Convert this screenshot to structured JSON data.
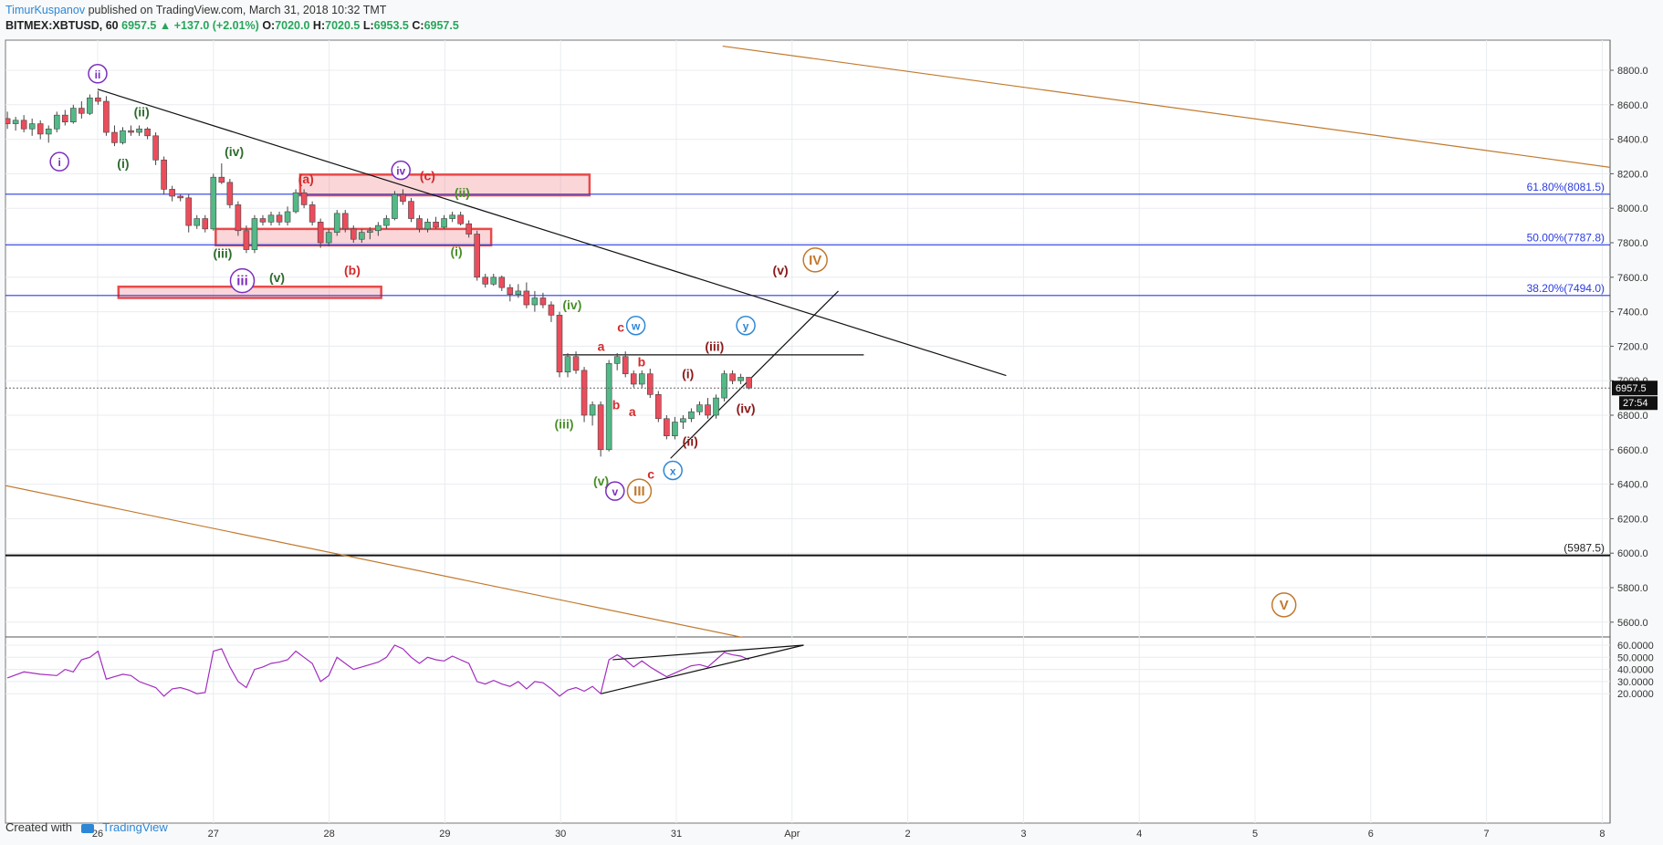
{
  "header": {
    "author": "TimurKuspanov",
    "published": "published on TradingView.com, March 31, 2018 10:32 TMT",
    "symbol": "BITMEX:XBTUSD, 60",
    "last": "6957.5",
    "change_arrow": "▲",
    "change": "+137.0 (+2.01%)",
    "o_label": "O:",
    "o": "7020.0",
    "h_label": "H:",
    "h": "7020.5",
    "l_label": "L:",
    "l": "6953.5",
    "c_label": "C:",
    "c": "6957.5"
  },
  "footer": {
    "created_with": "Created with",
    "brand": "TradingView"
  },
  "colors": {
    "up": "#53b987",
    "down": "#eb4d5c",
    "fib": "#2b3be0",
    "channel": "#c1792e",
    "rsi": "#a32dbf",
    "zone": "#e84a4a"
  },
  "chart_data": {
    "type": "candlestick",
    "price_axis": {
      "ticks": [
        "8800.0",
        "8600.0",
        "8400.0",
        "8200.0",
        "8000.0",
        "7800.0",
        "7600.0",
        "7400.0",
        "7200.0",
        "7000.0",
        "6800.0",
        "6600.0",
        "6400.0",
        "6200.0",
        "6000.0",
        "5800.0",
        "5600.0"
      ]
    },
    "time_axis": {
      "ticks": [
        "26",
        "27",
        "28",
        "29",
        "30",
        "31",
        "Apr",
        "2",
        "3",
        "4",
        "5",
        "6",
        "7",
        "8"
      ]
    },
    "last_price": "6957.5",
    "countdown": "27:54",
    "fib_levels": [
      {
        "label": "61.80%(8081.5)",
        "price": 8081.5
      },
      {
        "label": "50.00%(7787.8)",
        "price": 7787.8
      },
      {
        "label": "38.20%(7494.0)",
        "price": 7494.0
      }
    ],
    "support_level": {
      "label": "(5987.5)",
      "price": 5987.5
    },
    "target_zones": [
      {
        "t0": 1.75,
        "t1": 4.25,
        "p0": 8075,
        "p1": 8195
      },
      {
        "t0": 1.02,
        "t1": 3.4,
        "p0": 7785,
        "p1": 7880
      },
      {
        "t0": 0.18,
        "t1": 2.45,
        "p0": 7480,
        "p1": 7545
      }
    ],
    "rsi_axis": {
      "ticks": [
        "60.0000",
        "50.0000",
        "40.0000",
        "30.0000",
        "20.0000"
      ]
    },
    "candles": [
      [
        0,
        8520,
        8560,
        8460,
        8490
      ],
      [
        1,
        8490,
        8530,
        8450,
        8510
      ],
      [
        2,
        8510,
        8540,
        8440,
        8460
      ],
      [
        3,
        8460,
        8520,
        8420,
        8490
      ],
      [
        4,
        8490,
        8510,
        8400,
        8430
      ],
      [
        5,
        8430,
        8480,
        8380,
        8460
      ],
      [
        6,
        8460,
        8560,
        8440,
        8540
      ],
      [
        7,
        8540,
        8570,
        8480,
        8500
      ],
      [
        8,
        8500,
        8600,
        8490,
        8580
      ],
      [
        9,
        8580,
        8620,
        8520,
        8550
      ],
      [
        10,
        8550,
        8660,
        8540,
        8640
      ],
      [
        11,
        8640,
        8680,
        8600,
        8620
      ],
      [
        12,
        8620,
        8650,
        8420,
        8440
      ],
      [
        13,
        8440,
        8480,
        8360,
        8380
      ],
      [
        14,
        8380,
        8470,
        8370,
        8450
      ],
      [
        15,
        8450,
        8480,
        8420,
        8440
      ],
      [
        16,
        8440,
        8480,
        8420,
        8460
      ],
      [
        17,
        8460,
        8470,
        8400,
        8420
      ],
      [
        18,
        8420,
        8440,
        8250,
        8280
      ],
      [
        19,
        8280,
        8300,
        8080,
        8110
      ],
      [
        20,
        8110,
        8130,
        8040,
        8070
      ],
      [
        21,
        8070,
        8080,
        8040,
        8060
      ],
      [
        22,
        8060,
        8080,
        7860,
        7900
      ],
      [
        23,
        7900,
        7960,
        7880,
        7940
      ],
      [
        24,
        7940,
        7960,
        7860,
        7880
      ],
      [
        25,
        7880,
        8200,
        7870,
        8180
      ],
      [
        26,
        8180,
        8260,
        8140,
        8150
      ],
      [
        27,
        8150,
        8170,
        8000,
        8020
      ],
      [
        28,
        8020,
        8040,
        7840,
        7870
      ],
      [
        29,
        7870,
        7900,
        7740,
        7760
      ],
      [
        30,
        7760,
        7960,
        7740,
        7940
      ],
      [
        31,
        7940,
        7960,
        7900,
        7920
      ],
      [
        32,
        7920,
        7980,
        7900,
        7960
      ],
      [
        33,
        7960,
        7980,
        7900,
        7920
      ],
      [
        34,
        7920,
        8010,
        7900,
        7980
      ],
      [
        35,
        7980,
        8110,
        7970,
        8090
      ],
      [
        36,
        8090,
        8110,
        8000,
        8020
      ],
      [
        37,
        8020,
        8040,
        7900,
        7920
      ],
      [
        38,
        7920,
        7940,
        7770,
        7800
      ],
      [
        39,
        7800,
        7880,
        7780,
        7860
      ],
      [
        40,
        7860,
        7990,
        7840,
        7970
      ],
      [
        41,
        7970,
        7990,
        7860,
        7880
      ],
      [
        42,
        7880,
        7900,
        7800,
        7820
      ],
      [
        43,
        7820,
        7880,
        7800,
        7860
      ],
      [
        44,
        7860,
        7890,
        7820,
        7870
      ],
      [
        45,
        7870,
        7920,
        7840,
        7900
      ],
      [
        46,
        7900,
        7960,
        7880,
        7940
      ],
      [
        47,
        7940,
        8100,
        7930,
        8080
      ],
      [
        48,
        8080,
        8110,
        8020,
        8040
      ],
      [
        49,
        8040,
        8060,
        7920,
        7940
      ],
      [
        50,
        7940,
        7960,
        7860,
        7880
      ],
      [
        51,
        7880,
        7940,
        7860,
        7920
      ],
      [
        52,
        7920,
        7950,
        7880,
        7890
      ],
      [
        53,
        7890,
        7960,
        7880,
        7940
      ],
      [
        54,
        7940,
        7980,
        7920,
        7960
      ],
      [
        55,
        7960,
        7980,
        7900,
        7910
      ],
      [
        56,
        7910,
        7930,
        7830,
        7850
      ],
      [
        57,
        7850,
        7870,
        7580,
        7600
      ],
      [
        58,
        7600,
        7620,
        7540,
        7560
      ],
      [
        59,
        7560,
        7620,
        7550,
        7600
      ],
      [
        60,
        7600,
        7610,
        7520,
        7540
      ],
      [
        61,
        7540,
        7560,
        7460,
        7500
      ],
      [
        62,
        7500,
        7560,
        7480,
        7520
      ],
      [
        63,
        7520,
        7570,
        7420,
        7440
      ],
      [
        64,
        7440,
        7520,
        7400,
        7480
      ],
      [
        65,
        7480,
        7510,
        7420,
        7440
      ],
      [
        66,
        7440,
        7460,
        7340,
        7380
      ],
      [
        67,
        7380,
        7400,
        7020,
        7050
      ],
      [
        68,
        7050,
        7160,
        7020,
        7140
      ],
      [
        69,
        7140,
        7170,
        7040,
        7060
      ],
      [
        70,
        7060,
        7080,
        6760,
        6800
      ],
      [
        71,
        6800,
        6880,
        6740,
        6860
      ],
      [
        72,
        6860,
        6880,
        6560,
        6600
      ],
      [
        73,
        6600,
        7120,
        6590,
        7100
      ],
      [
        74,
        7100,
        7160,
        7060,
        7140
      ],
      [
        75,
        7140,
        7170,
        7020,
        7040
      ],
      [
        76,
        7040,
        7060,
        6960,
        6980
      ],
      [
        77,
        6980,
        7060,
        6960,
        7040
      ],
      [
        78,
        7040,
        7070,
        6900,
        6920
      ],
      [
        79,
        6920,
        6940,
        6760,
        6780
      ],
      [
        80,
        6780,
        6800,
        6660,
        6680
      ],
      [
        81,
        6680,
        6790,
        6660,
        6760
      ],
      [
        82,
        6760,
        6800,
        6720,
        6780
      ],
      [
        83,
        6780,
        6840,
        6760,
        6820
      ],
      [
        84,
        6820,
        6880,
        6800,
        6860
      ],
      [
        85,
        6860,
        6900,
        6780,
        6800
      ],
      [
        86,
        6800,
        6920,
        6780,
        6900
      ],
      [
        87,
        6900,
        7060,
        6880,
        7040
      ],
      [
        88,
        7040,
        7060,
        6980,
        7000
      ],
      [
        89,
        7000,
        7040,
        6980,
        7020
      ],
      [
        90,
        7020,
        7020,
        6950,
        6957.5
      ]
    ],
    "rsi": [
      [
        0,
        33
      ],
      [
        2,
        38
      ],
      [
        4,
        36
      ],
      [
        6,
        35
      ],
      [
        7,
        40
      ],
      [
        8,
        38
      ],
      [
        9,
        48
      ],
      [
        10,
        50
      ],
      [
        11,
        55
      ],
      [
        12,
        32
      ],
      [
        14,
        36
      ],
      [
        15,
        35
      ],
      [
        16,
        30
      ],
      [
        18,
        25
      ],
      [
        19,
        18
      ],
      [
        20,
        24
      ],
      [
        21,
        25
      ],
      [
        22,
        23
      ],
      [
        23,
        20
      ],
      [
        24,
        21
      ],
      [
        25,
        55
      ],
      [
        26,
        57
      ],
      [
        27,
        42
      ],
      [
        28,
        30
      ],
      [
        29,
        25
      ],
      [
        30,
        40
      ],
      [
        31,
        42
      ],
      [
        32,
        45
      ],
      [
        33,
        46
      ],
      [
        34,
        48
      ],
      [
        35,
        55
      ],
      [
        36,
        50
      ],
      [
        37,
        45
      ],
      [
        38,
        30
      ],
      [
        39,
        35
      ],
      [
        40,
        50
      ],
      [
        41,
        45
      ],
      [
        42,
        40
      ],
      [
        43,
        42
      ],
      [
        44,
        44
      ],
      [
        45,
        46
      ],
      [
        46,
        50
      ],
      [
        47,
        60
      ],
      [
        48,
        57
      ],
      [
        49,
        50
      ],
      [
        50,
        45
      ],
      [
        51,
        50
      ],
      [
        52,
        48
      ],
      [
        53,
        47
      ],
      [
        54,
        51
      ],
      [
        55,
        48
      ],
      [
        56,
        45
      ],
      [
        57,
        30
      ],
      [
        58,
        28
      ],
      [
        59,
        31
      ],
      [
        60,
        28
      ],
      [
        61,
        26
      ],
      [
        62,
        30
      ],
      [
        63,
        24
      ],
      [
        64,
        30
      ],
      [
        65,
        29
      ],
      [
        66,
        24
      ],
      [
        67,
        18
      ],
      [
        68,
        23
      ],
      [
        69,
        25
      ],
      [
        70,
        22
      ],
      [
        71,
        26
      ],
      [
        72,
        20
      ],
      [
        73,
        48
      ],
      [
        74,
        52
      ],
      [
        75,
        48
      ],
      [
        76,
        42
      ],
      [
        77,
        47
      ],
      [
        78,
        42
      ],
      [
        79,
        38
      ],
      [
        80,
        34
      ],
      [
        81,
        37
      ],
      [
        82,
        40
      ],
      [
        83,
        43
      ],
      [
        84,
        44
      ],
      [
        85,
        42
      ],
      [
        86,
        48
      ],
      [
        87,
        54
      ],
      [
        88,
        52
      ],
      [
        89,
        51
      ],
      [
        90,
        48
      ]
    ],
    "wave_labels": [
      {
        "text": "ii",
        "t": 0.0,
        "p": 8780,
        "circle": true,
        "color": "#7b2dbd"
      },
      {
        "text": "i",
        "t": -0.33,
        "p": 8270,
        "circle": true,
        "color": "#7b2dbd"
      },
      {
        "text": "(ii)",
        "t": 0.38,
        "p": 8560,
        "color": "#2e6b2e"
      },
      {
        "text": "(i)",
        "t": 0.22,
        "p": 8260,
        "color": "#2e6b2e"
      },
      {
        "text": "(iv)",
        "t": 1.18,
        "p": 8330,
        "color": "#2e6b2e"
      },
      {
        "text": "(iii)",
        "t": 1.08,
        "p": 7740,
        "color": "#2e6b2e"
      },
      {
        "text": "iii",
        "t": 1.25,
        "p": 7580,
        "circle": true,
        "color": "#7b2dbd"
      },
      {
        "text": "(v)",
        "t": 1.55,
        "p": 7600,
        "color": "#2e6b2e"
      },
      {
        "text": "(a)",
        "t": 1.8,
        "p": 8170,
        "color": "#d42a2a"
      },
      {
        "text": "(b)",
        "t": 2.2,
        "p": 7640,
        "color": "#d42a2a"
      },
      {
        "text": "iv",
        "t": 2.62,
        "p": 8220,
        "circle": true,
        "color": "#7b2dbd"
      },
      {
        "text": "(c)",
        "t": 2.85,
        "p": 8190,
        "color": "#d42a2a"
      },
      {
        "text": "(ii)",
        "t": 3.15,
        "p": 8090,
        "color": "#4a8f2a"
      },
      {
        "text": "(i)",
        "t": 3.1,
        "p": 7750,
        "color": "#4a8f2a"
      },
      {
        "text": "(iv)",
        "t": 4.1,
        "p": 7440,
        "color": "#4a8f2a"
      },
      {
        "text": "a",
        "t": 4.35,
        "p": 7200,
        "color": "#d42a2a"
      },
      {
        "text": "c",
        "t": 4.52,
        "p": 7310,
        "color": "#d42a2a"
      },
      {
        "text": "w",
        "t": 4.65,
        "p": 7320,
        "circle": true,
        "color": "#2d87d6"
      },
      {
        "text": "b",
        "t": 4.7,
        "p": 7110,
        "color": "#d42a2a"
      },
      {
        "text": "b",
        "t": 4.48,
        "p": 6860,
        "color": "#d42a2a"
      },
      {
        "text": "a",
        "t": 4.62,
        "p": 6820,
        "color": "#d42a2a"
      },
      {
        "text": "(iii)",
        "t": 4.03,
        "p": 6750,
        "color": "#4a8f2a"
      },
      {
        "text": "(v)",
        "t": 4.35,
        "p": 6420,
        "color": "#4a8f2a"
      },
      {
        "text": "v",
        "t": 4.47,
        "p": 6360,
        "circle": true,
        "color": "#7b2dbd"
      },
      {
        "text": "III",
        "t": 4.68,
        "p": 6360,
        "circle": true,
        "color": "#c1792e"
      },
      {
        "text": "c",
        "t": 4.78,
        "p": 6460,
        "color": "#d42a2a"
      },
      {
        "text": "x",
        "t": 4.97,
        "p": 6480,
        "circle": true,
        "color": "#2d87d6"
      },
      {
        "text": "(ii)",
        "t": 5.12,
        "p": 6650,
        "color": "#8b1a1a"
      },
      {
        "text": "(i)",
        "t": 5.1,
        "p": 7040,
        "color": "#8b1a1a"
      },
      {
        "text": "(iii)",
        "t": 5.33,
        "p": 7200,
        "color": "#8b1a1a"
      },
      {
        "text": "y",
        "t": 5.6,
        "p": 7320,
        "circle": true,
        "color": "#2d87d6"
      },
      {
        "text": "(iv)",
        "t": 5.6,
        "p": 6840,
        "color": "#8b1a1a"
      },
      {
        "text": "(v)",
        "t": 5.9,
        "p": 7640,
        "color": "#8b1a1a"
      },
      {
        "text": "IV",
        "t": 6.2,
        "p": 7700,
        "circle": true,
        "color": "#c1792e"
      },
      {
        "text": "V",
        "t": 10.25,
        "p": 5700,
        "circle": true,
        "color": "#c1792e"
      }
    ],
    "trend_lines": [
      {
        "t0": 0.0,
        "p0": 8690,
        "t1": 7.85,
        "p1": 7030,
        "color": "#111"
      },
      {
        "t0": 4.02,
        "p0": 7150,
        "t1": 6.62,
        "p1": 7150,
        "color": "#111"
      },
      {
        "t0": 4.95,
        "p0": 6550,
        "t1": 6.4,
        "p1": 7520,
        "color": "#111"
      },
      {
        "t0": 5.4,
        "p0": 8940,
        "t1": 13.8,
        "p1": 8170,
        "color": "#c1792e"
      },
      {
        "t0": -1.0,
        "p0": 6420,
        "t1": 5.8,
        "p1": 5480,
        "color": "#c1792e"
      }
    ],
    "rsi_lines": [
      {
        "t0": 4.45,
        "v0": 48,
        "t1": 6.1,
        "v1": 60
      },
      {
        "t0": 4.35,
        "v0": 20,
        "t1": 6.1,
        "v1": 60
      }
    ]
  }
}
